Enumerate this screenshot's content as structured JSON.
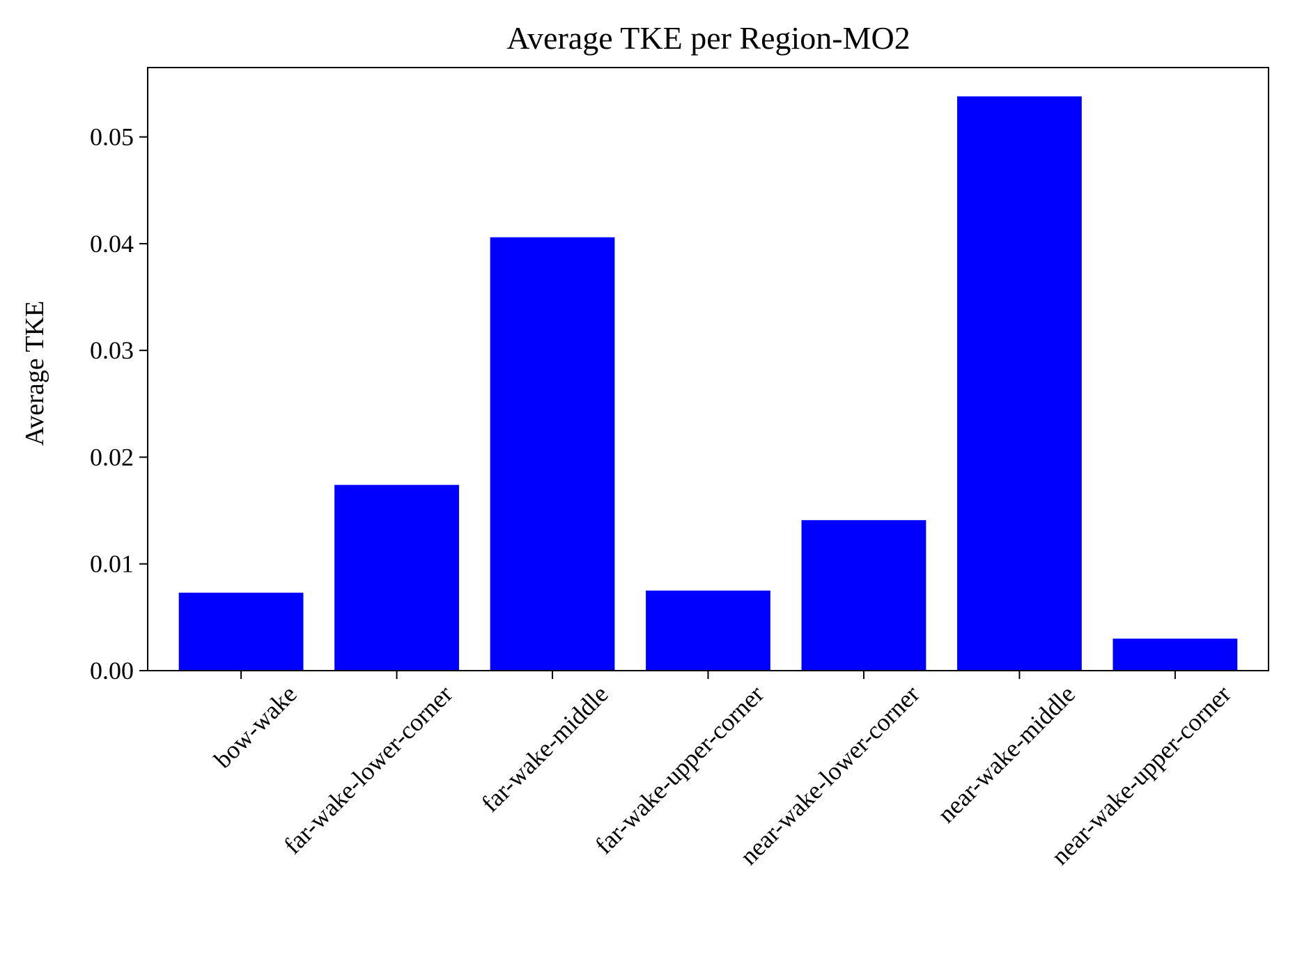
{
  "chart_data": {
    "type": "bar",
    "title": "Average TKE per Region-MO2",
    "xlabel": "",
    "ylabel": "Average TKE",
    "categories": [
      "bow-wake",
      "far-wake-lower-corner",
      "far-wake-middle",
      "far-wake-upper-corner",
      "near-wake-lower-corner",
      "near-wake-middle",
      "near-wake-upper-corner"
    ],
    "values": [
      0.0073,
      0.0174,
      0.0406,
      0.0075,
      0.0141,
      0.0538,
      0.003
    ],
    "ylim": [
      0,
      0.0565
    ],
    "yticks": [
      0.0,
      0.01,
      0.02,
      0.03,
      0.04,
      0.05
    ],
    "ytick_labels": [
      "0.00",
      "0.01",
      "0.02",
      "0.03",
      "0.04",
      "0.05"
    ],
    "bar_color": "#0000ff",
    "grid": false,
    "legend": "none"
  }
}
